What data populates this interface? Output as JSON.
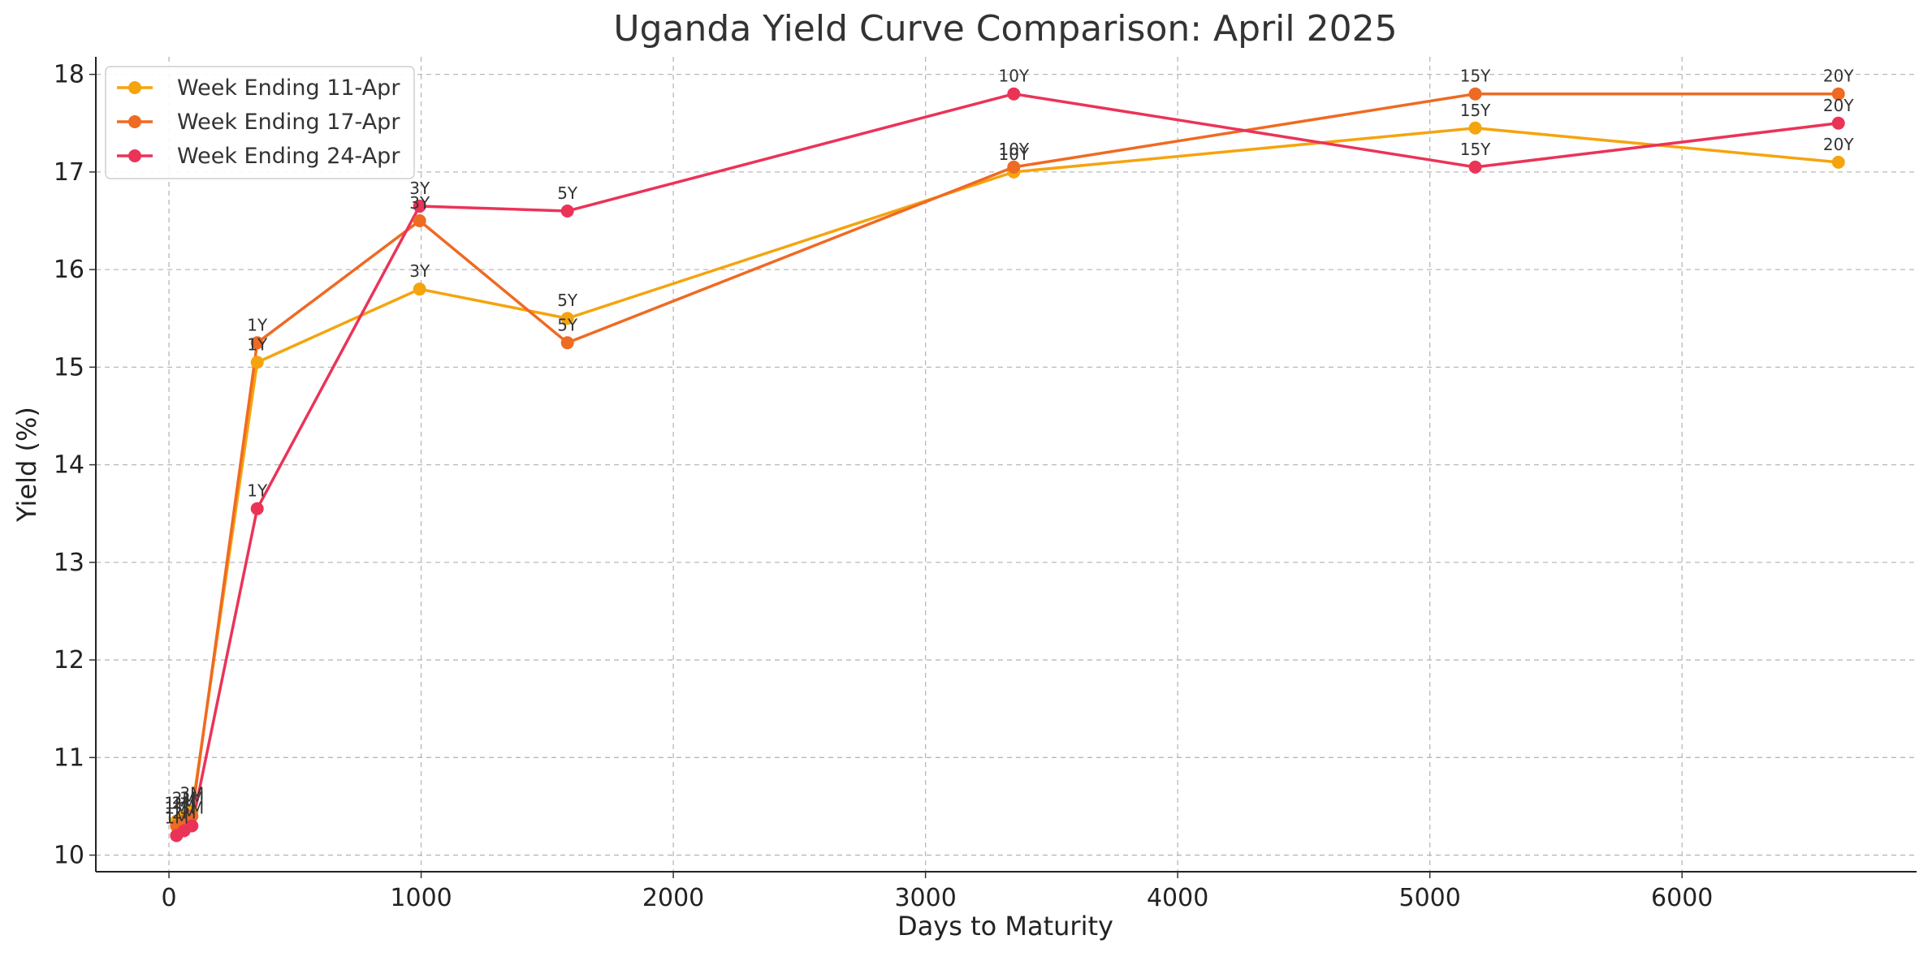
{
  "chart_data": {
    "type": "line",
    "title": "Uganda Yield Curve Comparison: April 2025",
    "xlabel": "Days to Maturity",
    "ylabel": "Yield (%)",
    "xlim": [
      -290,
      6930
    ],
    "ylim": [
      9.83,
      18.18
    ],
    "xticks": [
      0,
      1000,
      2000,
      3000,
      4000,
      5000,
      6000
    ],
    "yticks": [
      10,
      11,
      12,
      13,
      14,
      15,
      16,
      17,
      18
    ],
    "grid": true,
    "legend_position": "top-left",
    "colors": {
      "series_0": "#f5a40e",
      "series_1": "#ef6a22",
      "series_2": "#eb3358"
    },
    "series": [
      {
        "name": "Week Ending 11-Apr",
        "points": [
          {
            "x": 30,
            "y": 10.35,
            "label": "1M"
          },
          {
            "x": 60,
            "y": 10.4,
            "label": "2M"
          },
          {
            "x": 91,
            "y": 10.45,
            "label": "3M"
          },
          {
            "x": 350,
            "y": 15.05,
            "label": "1Y"
          },
          {
            "x": 994,
            "y": 15.8,
            "label": "3Y"
          },
          {
            "x": 1580,
            "y": 15.5,
            "label": "5Y"
          },
          {
            "x": 3350,
            "y": 17.0,
            "label": "10Y"
          },
          {
            "x": 5180,
            "y": 17.45,
            "label": "15Y"
          },
          {
            "x": 6620,
            "y": 17.1,
            "label": "20Y"
          }
        ]
      },
      {
        "name": "Week Ending 17-Apr",
        "points": [
          {
            "x": 30,
            "y": 10.3,
            "label": "1M"
          },
          {
            "x": 60,
            "y": 10.35,
            "label": "2M"
          },
          {
            "x": 91,
            "y": 10.4,
            "label": "3M"
          },
          {
            "x": 350,
            "y": 15.25,
            "label": "1Y"
          },
          {
            "x": 994,
            "y": 16.5,
            "label": "3Y"
          },
          {
            "x": 1580,
            "y": 15.25,
            "label": "5Y"
          },
          {
            "x": 3350,
            "y": 17.05,
            "label": "10Y"
          },
          {
            "x": 5180,
            "y": 17.8,
            "label": "15Y"
          },
          {
            "x": 6620,
            "y": 17.8,
            "label": "20Y"
          }
        ]
      },
      {
        "name": "Week Ending 24-Apr",
        "points": [
          {
            "x": 30,
            "y": 10.2,
            "label": "1M"
          },
          {
            "x": 60,
            "y": 10.25,
            "label": "2M"
          },
          {
            "x": 91,
            "y": 10.3,
            "label": "3M"
          },
          {
            "x": 350,
            "y": 13.55,
            "label": "1Y"
          },
          {
            "x": 994,
            "y": 16.65,
            "label": "3Y"
          },
          {
            "x": 1580,
            "y": 16.6,
            "label": "5Y"
          },
          {
            "x": 3350,
            "y": 17.8,
            "label": "10Y"
          },
          {
            "x": 5180,
            "y": 17.05,
            "label": "15Y"
          },
          {
            "x": 6620,
            "y": 17.5,
            "label": "20Y"
          }
        ]
      }
    ]
  }
}
